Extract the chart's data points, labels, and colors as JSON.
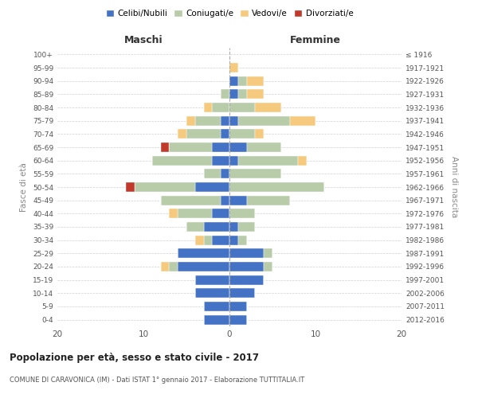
{
  "age_groups": [
    "0-4",
    "5-9",
    "10-14",
    "15-19",
    "20-24",
    "25-29",
    "30-34",
    "35-39",
    "40-44",
    "45-49",
    "50-54",
    "55-59",
    "60-64",
    "65-69",
    "70-74",
    "75-79",
    "80-84",
    "85-89",
    "90-94",
    "95-99",
    "100+"
  ],
  "birth_years": [
    "2012-2016",
    "2007-2011",
    "2002-2006",
    "1997-2001",
    "1992-1996",
    "1987-1991",
    "1982-1986",
    "1977-1981",
    "1972-1976",
    "1967-1971",
    "1962-1966",
    "1957-1961",
    "1952-1956",
    "1947-1951",
    "1942-1946",
    "1937-1941",
    "1932-1936",
    "1927-1931",
    "1922-1926",
    "1917-1921",
    "≤ 1916"
  ],
  "maschi": {
    "celibi": [
      3,
      3,
      4,
      4,
      6,
      6,
      2,
      3,
      2,
      1,
      4,
      1,
      2,
      2,
      1,
      1,
      0,
      0,
      0,
      0,
      0
    ],
    "coniugati": [
      0,
      0,
      0,
      0,
      1,
      0,
      1,
      2,
      4,
      7,
      7,
      2,
      7,
      5,
      4,
      3,
      2,
      1,
      0,
      0,
      0
    ],
    "vedovi": [
      0,
      0,
      0,
      0,
      1,
      0,
      1,
      0,
      1,
      0,
      0,
      0,
      0,
      0,
      1,
      1,
      1,
      0,
      0,
      0,
      0
    ],
    "divorziati": [
      0,
      0,
      0,
      0,
      0,
      0,
      0,
      0,
      0,
      0,
      1,
      0,
      0,
      1,
      0,
      0,
      0,
      0,
      0,
      0,
      0
    ]
  },
  "femmine": {
    "nubili": [
      2,
      2,
      3,
      4,
      4,
      4,
      1,
      1,
      0,
      2,
      0,
      0,
      1,
      2,
      0,
      1,
      0,
      1,
      1,
      0,
      0
    ],
    "coniugate": [
      0,
      0,
      0,
      0,
      1,
      1,
      1,
      2,
      3,
      5,
      11,
      6,
      7,
      4,
      3,
      6,
      3,
      1,
      1,
      0,
      0
    ],
    "vedove": [
      0,
      0,
      0,
      0,
      0,
      0,
      0,
      0,
      0,
      0,
      0,
      0,
      1,
      0,
      1,
      3,
      3,
      2,
      2,
      1,
      0
    ],
    "divorziate": [
      0,
      0,
      0,
      0,
      0,
      0,
      0,
      0,
      0,
      0,
      0,
      0,
      0,
      0,
      0,
      0,
      0,
      0,
      0,
      0,
      0
    ]
  },
  "colors": {
    "celibi_nubili": "#4472c4",
    "coniugati": "#b8ccaa",
    "vedovi": "#f5c97e",
    "divorziati": "#c0392b"
  },
  "xlim": 20,
  "title": "Popolazione per età, sesso e stato civile - 2017",
  "subtitle": "COMUNE DI CARAVONICA (IM) - Dati ISTAT 1° gennaio 2017 - Elaborazione TUTTITALIA.IT",
  "ylabel_left": "Fasce di età",
  "ylabel_right": "Anni di nascita",
  "xlabel_left": "Maschi",
  "xlabel_right": "Femmine",
  "legend_labels": [
    "Celibi/Nubili",
    "Coniugati/e",
    "Vedovi/e",
    "Divorziati/e"
  ],
  "background_color": "#ffffff",
  "grid_color": "#cccccc"
}
